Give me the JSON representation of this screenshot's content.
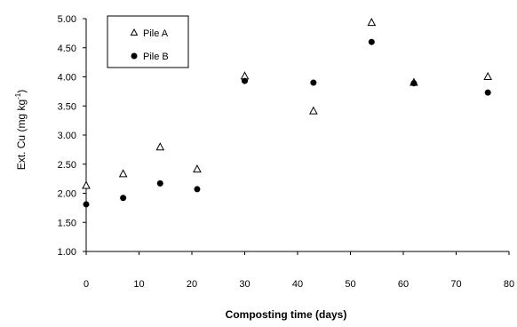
{
  "chart_data": {
    "type": "scatter",
    "title": "",
    "xlabel": "Composting time (days)",
    "ylabel": {
      "prefix": "Ext. Cu (mg kg",
      "superscript": "-1",
      "suffix": ")"
    },
    "xlim": [
      0,
      80
    ],
    "ylim": [
      1.0,
      5.0
    ],
    "x_ticks": [
      "0",
      "10",
      "20",
      "30",
      "40",
      "50",
      "60",
      "70",
      "80"
    ],
    "y_ticks": [
      "1.00",
      "1.50",
      "2.00",
      "2.50",
      "3.00",
      "3.50",
      "4.00",
      "4.50",
      "5.00"
    ],
    "grid": false,
    "legend_placement": "top-left",
    "series": [
      {
        "name": "Pile A",
        "marker": "open-triangle",
        "color": "#000000",
        "x": [
          0,
          7,
          14,
          21,
          30,
          43,
          54,
          62,
          76
        ],
        "y": [
          2.13,
          2.33,
          2.79,
          2.41,
          4.01,
          3.41,
          4.93,
          3.9,
          4.0
        ]
      },
      {
        "name": "Pile B",
        "marker": "filled-circle",
        "color": "#000000",
        "x": [
          0,
          7,
          14,
          21,
          30,
          43,
          54,
          62,
          76
        ],
        "y": [
          1.81,
          1.92,
          2.17,
          2.07,
          3.93,
          3.9,
          4.6,
          3.89,
          3.73
        ]
      }
    ]
  }
}
